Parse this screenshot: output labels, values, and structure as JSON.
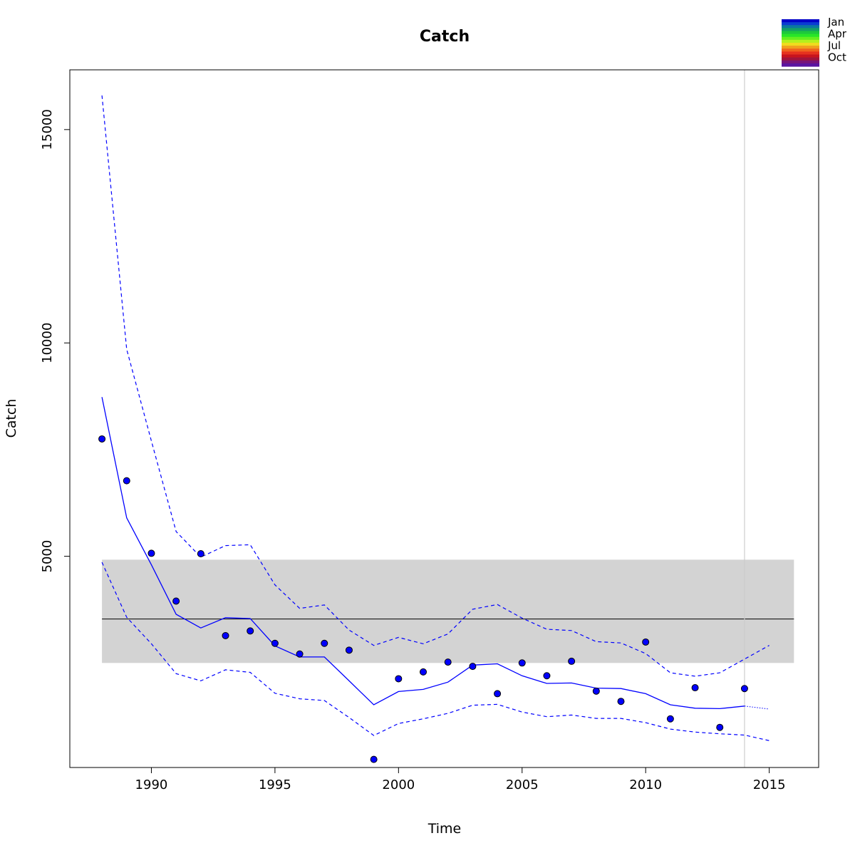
{
  "chart_data": {
    "type": "line",
    "title": "Catch",
    "xlabel": "Time",
    "ylabel": "Catch",
    "xlim": [
      1986.7,
      2017.0
    ],
    "ylim": [
      50,
      16400
    ],
    "x_ticks": [
      1990,
      1995,
      2000,
      2005,
      2010,
      2015
    ],
    "x_tick_labels": [
      "1990",
      "1995",
      "2000",
      "2005",
      "2010",
      "2015"
    ],
    "y_ticks": [
      5000,
      10000,
      15000
    ],
    "y_tick_labels": [
      "5000",
      "10000",
      "15000"
    ],
    "grid": false,
    "observed": {
      "x": [
        1988,
        1989,
        1990,
        1991,
        1992,
        1993,
        1994,
        1995,
        1996,
        1997,
        1998,
        1999,
        2000,
        2001,
        2002,
        2003,
        2004,
        2005,
        2006,
        2007,
        2008,
        2009,
        2010,
        2011,
        2012,
        2013,
        2014
      ],
      "y": [
        7750,
        6770,
        5070,
        3950,
        5060,
        3140,
        3250,
        2960,
        2710,
        2960,
        2800,
        240,
        2130,
        2290,
        2520,
        2420,
        1780,
        2500,
        2200,
        2540,
        1840,
        1600,
        2990,
        1190,
        1920,
        990,
        1900
      ]
    },
    "fitted": {
      "x": [
        1988,
        1989,
        1990,
        1991,
        1992,
        1993,
        1994,
        1995,
        1996,
        1997,
        1998,
        1999,
        2000,
        2001,
        2002,
        2003,
        2004,
        2005,
        2006,
        2007,
        2008,
        2009,
        2010,
        2011,
        2012,
        2013,
        2014
      ],
      "y": [
        8730,
        5900,
        4800,
        3640,
        3320,
        3560,
        3540,
        2900,
        2640,
        2640,
        2080,
        1520,
        1830,
        1880,
        2050,
        2450,
        2480,
        2200,
        2020,
        2030,
        1910,
        1900,
        1780,
        1520,
        1440,
        1430,
        1490
      ]
    },
    "forecast": {
      "x": [
        2014,
        2015
      ],
      "y": [
        1490,
        1420
      ]
    },
    "upper_bound": {
      "x": [
        1988,
        1989,
        1990,
        1991,
        1992,
        1993,
        1994,
        1995,
        1996,
        1997,
        1998,
        1999,
        2000,
        2001,
        2002,
        2003,
        2004,
        2005,
        2006,
        2007,
        2008,
        2009,
        2010,
        2011,
        2012,
        2013,
        2014,
        2015
      ],
      "y": [
        15800,
        9850,
        7700,
        5580,
        4980,
        5250,
        5270,
        4330,
        3780,
        3860,
        3270,
        2910,
        3100,
        2950,
        3180,
        3760,
        3870,
        3550,
        3290,
        3260,
        3000,
        2970,
        2720,
        2270,
        2190,
        2270,
        2590,
        2910
      ]
    },
    "lower_bound": {
      "x": [
        1988,
        1989,
        1990,
        1991,
        1992,
        1993,
        1994,
        1995,
        1996,
        1997,
        1998,
        1999,
        2000,
        2001,
        2002,
        2003,
        2004,
        2005,
        2006,
        2007,
        2008,
        2009,
        2010,
        2011,
        2012,
        2013,
        2014,
        2015
      ],
      "y": [
        4860,
        3570,
        2950,
        2250,
        2080,
        2340,
        2280,
        1790,
        1660,
        1620,
        1220,
        800,
        1080,
        1190,
        1320,
        1510,
        1530,
        1350,
        1240,
        1280,
        1200,
        1200,
        1100,
        950,
        880,
        840,
        810,
        680
      ]
    },
    "reference_band": {
      "x": [
        1988,
        2016
      ],
      "y": [
        2500,
        4920
      ]
    },
    "reference_line": {
      "x": [
        1988,
        2016
      ],
      "y": 3530
    },
    "vertical_line": {
      "x": 2014
    },
    "legend": {
      "position": "top-right",
      "labels": [
        "Jan",
        "Apr",
        "Jul",
        "Oct"
      ]
    },
    "colors": {
      "series": "#0000ff",
      "band": "#d3d3d3",
      "reference_line": "#000000",
      "vertical_line": "#cccccc"
    }
  }
}
